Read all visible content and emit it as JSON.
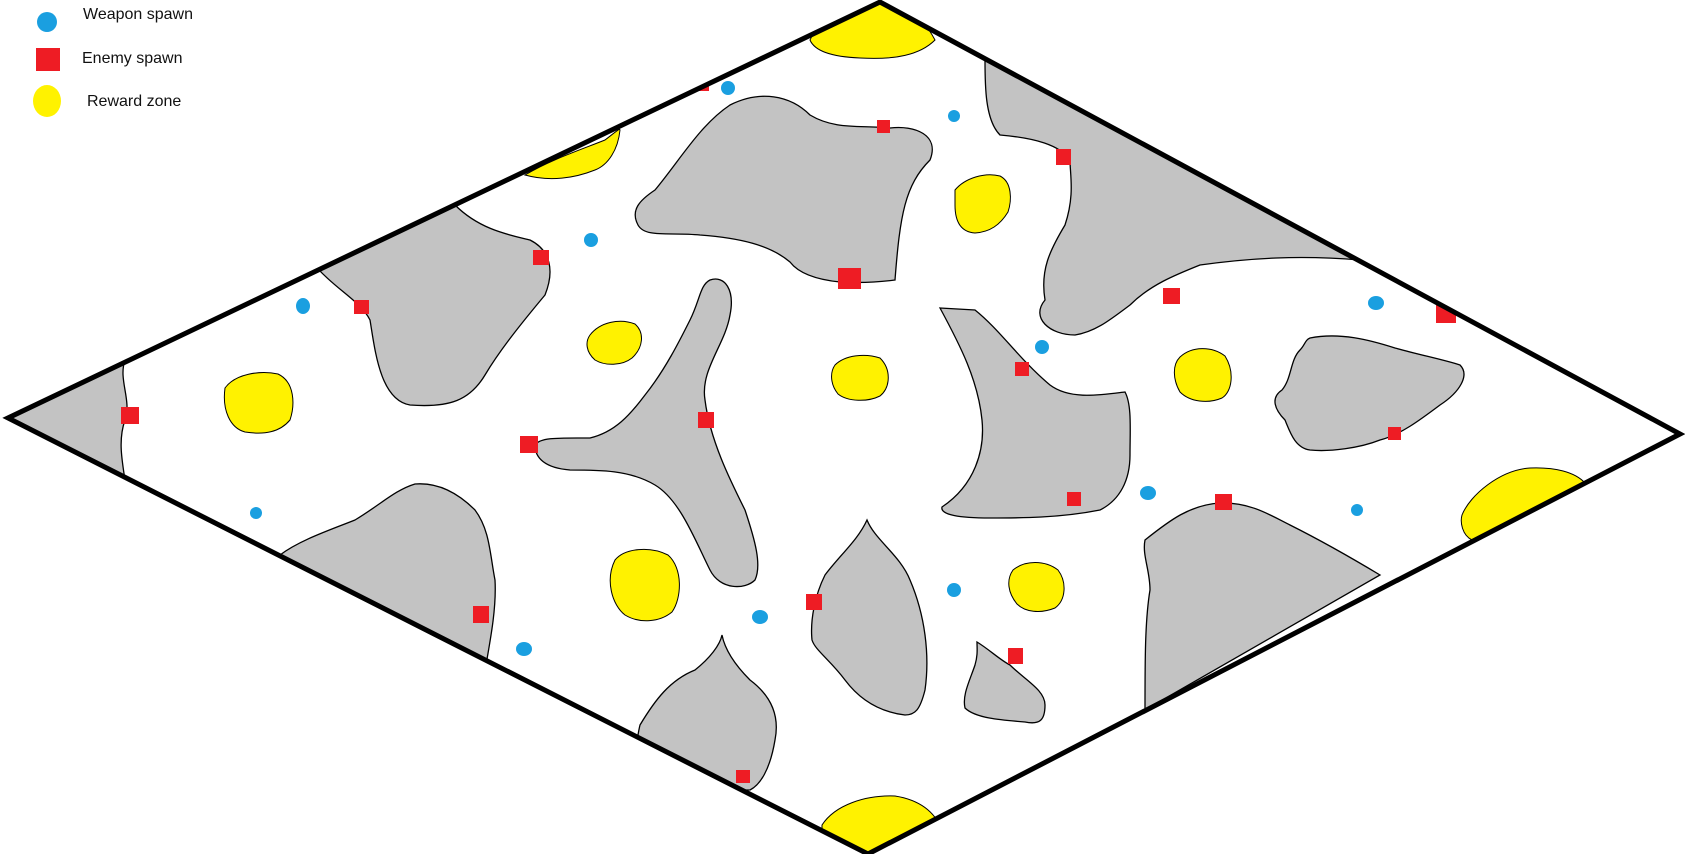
{
  "legend": [
    {
      "key": "weapon",
      "label": "Weapon spawn",
      "symbol": "circle",
      "color": "#1a9fe0"
    },
    {
      "key": "enemy",
      "label": "Enemy spawn",
      "symbol": "square",
      "color": "#ee1c24"
    },
    {
      "key": "reward",
      "label": "Reward zone",
      "symbol": "blob",
      "color": "#fff200"
    }
  ],
  "colors": {
    "floor": "#ffffff",
    "obstacle": "#c3c3c3",
    "border": "#000000",
    "weapon": "#1a9fe0",
    "enemy": "#ee1c24",
    "reward": "#fff200"
  }
}
